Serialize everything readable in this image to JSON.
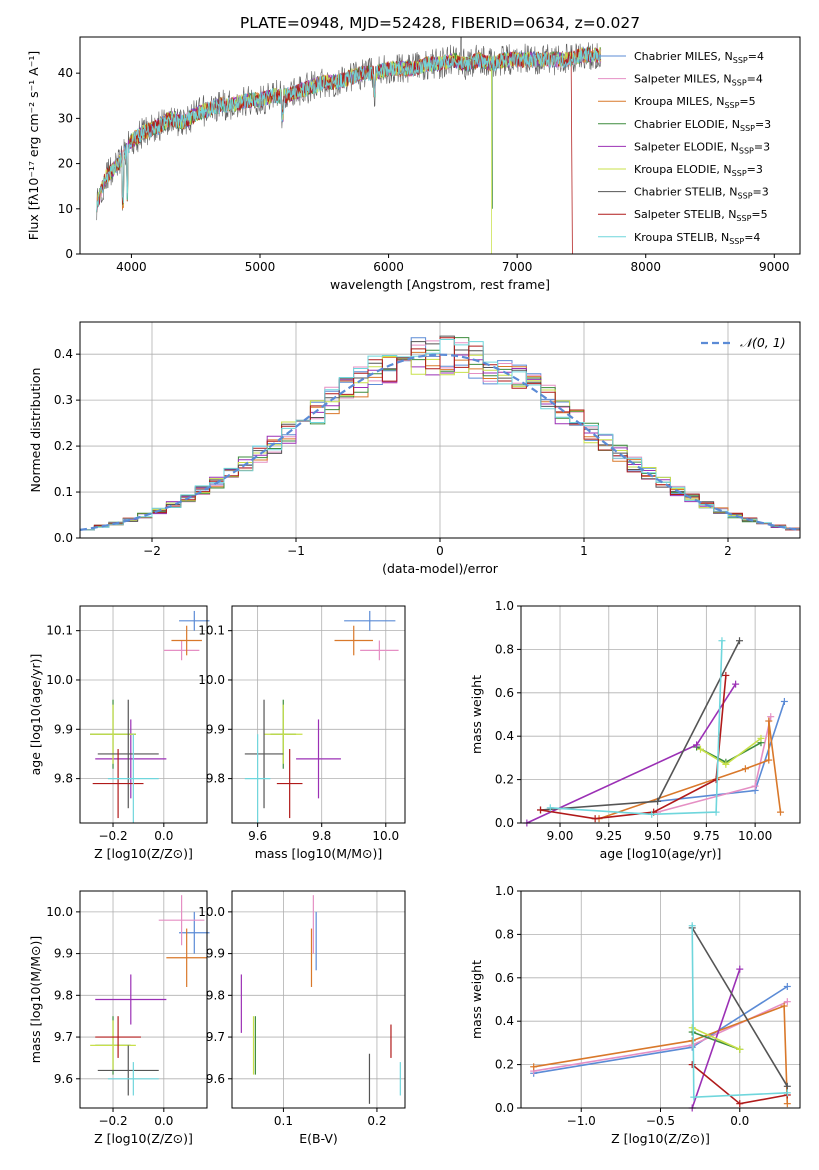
{
  "title": "PLATE=0948, MJD=52428, FIBERID=0634, z=0.027",
  "colors": {
    "Chabrier MILES": "#5b8bd6",
    "Salpeter MILES": "#e58fc4",
    "Kroupa MILES": "#d9782a",
    "Chabrier ELODIE": "#3d8c3d",
    "Salpeter ELODIE": "#9b30b5",
    "Kroupa ELODIE": "#c8e04a",
    "Chabrier STELIB": "#555555",
    "Salpeter STELIB": "#b01a1a",
    "Kroupa STELIB": "#6fd6dc"
  },
  "chart_data": [
    {
      "id": "spectrum",
      "type": "line",
      "xlabel": "wavelength [Angstrom, rest frame]",
      "ylabel": "Flux [fλ10⁻¹⁷ erg cm⁻² s⁻¹ A⁻¹]",
      "xlim": [
        3600,
        9200
      ],
      "ylim": [
        0,
        48
      ],
      "xticks": [
        "4000",
        "5000",
        "6000",
        "7000",
        "8000",
        "9000"
      ],
      "yticks": [
        "0",
        "10",
        "20",
        "30",
        "40"
      ],
      "grid": false,
      "legend_position": "right",
      "x": [
        3730,
        3800,
        3900,
        4000,
        4100,
        4200,
        4300,
        4400,
        4500,
        4600,
        4700,
        4800,
        4900,
        5000,
        5100,
        5200,
        5300,
        5400,
        5500,
        5600,
        5700,
        5800,
        5900,
        6000,
        6100,
        6200,
        6300,
        6400,
        6500,
        6600,
        6700,
        6800,
        6900,
        7000,
        7100,
        7200,
        7300,
        7400,
        7500,
        7600,
        7650
      ],
      "y": [
        11,
        17,
        20,
        25,
        27,
        28,
        30,
        29,
        31,
        32,
        33,
        33,
        34,
        34,
        35,
        35,
        36,
        37,
        38,
        38,
        39,
        40,
        40,
        41,
        41,
        41,
        42,
        42,
        43,
        42,
        43,
        42,
        43,
        43,
        43,
        43,
        43,
        43,
        44,
        44,
        44
      ],
      "series": [
        {
          "name": "Chabrier MILES, N_SSP=4"
        },
        {
          "name": "Salpeter MILES, N_SSP=4"
        },
        {
          "name": "Kroupa MILES, N_SSP=5"
        },
        {
          "name": "Chabrier ELODIE, N_SSP=3"
        },
        {
          "name": "Salpeter ELODIE, N_SSP=3"
        },
        {
          "name": "Kroupa ELODIE, N_SSP=3"
        },
        {
          "name": "Chabrier STELIB, N_SSP=3"
        },
        {
          "name": "Salpeter STELIB, N_SSP=5"
        },
        {
          "name": "Kroupa STELIB, N_SSP=4"
        }
      ]
    },
    {
      "id": "residuals",
      "type": "histogram",
      "xlabel": "(data-model)/error",
      "ylabel": "Normed distribution",
      "xlim": [
        -2.5,
        2.5
      ],
      "ylim": [
        0,
        0.47
      ],
      "xticks": [
        "−2",
        "−1",
        "0",
        "1",
        "2"
      ],
      "yticks": [
        "0.0",
        "0.1",
        "0.2",
        "0.3",
        "0.4"
      ],
      "grid": true,
      "legend": "𝒩(0, 1)",
      "legend_position": "top-right"
    },
    {
      "id": "age-vs-Z",
      "type": "errorbar",
      "xlabel": "Z [log10(Z/Z⊙)]",
      "ylabel": "age [log10(age/yr)]",
      "xlim": [
        -0.33,
        0.17
      ],
      "ylim": [
        9.71,
        10.15
      ],
      "xticks": [
        "−0.2",
        "0.0"
      ],
      "yticks": [
        "9.8",
        "9.9",
        "10.0",
        "10.1"
      ],
      "grid": true
    },
    {
      "id": "age-vs-mass",
      "type": "errorbar",
      "xlabel": "mass [log10(M/M⊙)]",
      "ylabel": "",
      "xlim": [
        9.52,
        10.06
      ],
      "ylim": [
        9.71,
        10.15
      ],
      "xticks": [
        "9.6",
        "9.8",
        "10.0"
      ],
      "yticks": [
        "9.8",
        "9.9",
        "10.0",
        "10.1"
      ],
      "grid": true
    },
    {
      "id": "massweight-vs-age",
      "type": "line",
      "xlabel": "age [log10(age/yr)]",
      "ylabel": "mass weight",
      "xlim": [
        8.8,
        10.23
      ],
      "ylim": [
        0,
        1
      ],
      "xticks": [
        "9.00",
        "9.25",
        "9.50",
        "9.75",
        "10.00"
      ],
      "yticks": [
        "0.0",
        "0.2",
        "0.4",
        "0.6",
        "0.8",
        "1.0"
      ],
      "grid": true
    },
    {
      "id": "mass-vs-Z",
      "type": "errorbar",
      "xlabel": "Z [log10(Z/Z⊙)]",
      "ylabel": "mass [log10(M/M⊙)]",
      "xlim": [
        -0.33,
        0.17
      ],
      "ylim": [
        9.53,
        10.05
      ],
      "xticks": [
        "−0.2",
        "0.0"
      ],
      "yticks": [
        "9.6",
        "9.7",
        "9.8",
        "9.9",
        "10.0"
      ],
      "grid": true
    },
    {
      "id": "mass-vs-EBV",
      "type": "errorbar",
      "xlabel": "E(B-V)",
      "ylabel": "",
      "xlim": [
        0.045,
        0.23
      ],
      "ylim": [
        9.53,
        10.05
      ],
      "xticks": [
        "0.1",
        "0.2"
      ],
      "yticks": [
        "9.6",
        "9.7",
        "9.8",
        "9.9",
        "10.0"
      ],
      "grid": true
    },
    {
      "id": "massweight-vs-Z",
      "type": "line",
      "xlabel": "Z [log10(Z/Z⊙)]",
      "ylabel": "mass weight",
      "xlim": [
        -1.38,
        0.38
      ],
      "ylim": [
        0,
        1
      ],
      "xticks": [
        "−1.0",
        "−0.5",
        "0.0"
      ],
      "yticks": [
        "0.0",
        "0.2",
        "0.4",
        "0.6",
        "0.8",
        "1.0"
      ],
      "grid": true
    }
  ]
}
